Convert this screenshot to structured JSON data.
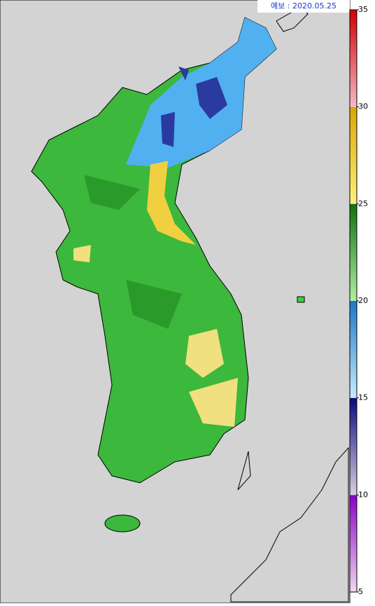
{
  "label": "예보 : 2020.05.25",
  "colorbar": {
    "lim": [
      5,
      35
    ],
    "ticks": [
      5,
      10,
      15,
      20,
      25,
      30,
      35
    ],
    "segments": [
      {
        "range": [
          5,
          10
        ],
        "colors": [
          "#f0d8f0",
          "#8a00c8"
        ]
      },
      {
        "range": [
          10,
          15
        ],
        "colors": [
          "#d8d0e0",
          "#0a0a80"
        ]
      },
      {
        "range": [
          15,
          20
        ],
        "colors": [
          "#c8ecfc",
          "#1a78c8"
        ]
      },
      {
        "range": [
          20,
          25
        ],
        "colors": [
          "#b0f0a0",
          "#107010"
        ]
      },
      {
        "range": [
          25,
          30
        ],
        "colors": [
          "#fff080",
          "#d8a800"
        ]
      },
      {
        "range": [
          30,
          35
        ],
        "colors": [
          "#f8b8c8",
          "#d00000"
        ]
      }
    ]
  }
}
